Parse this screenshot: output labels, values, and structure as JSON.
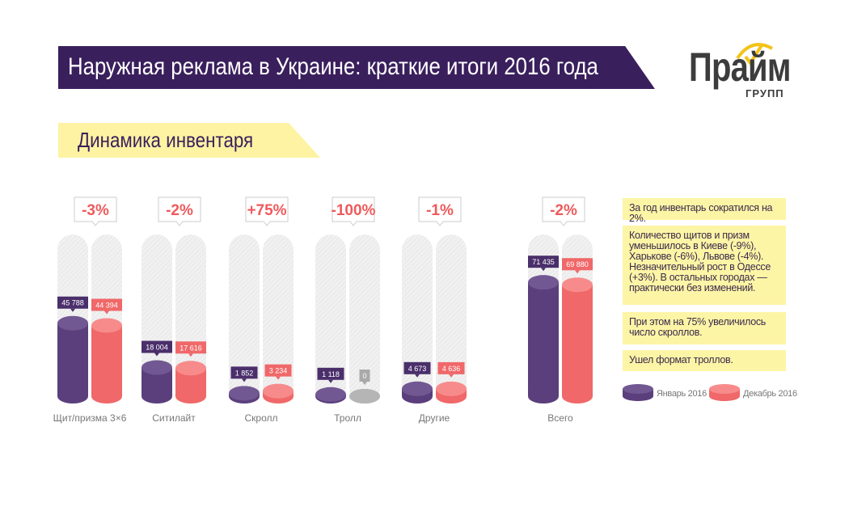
{
  "header": {
    "title": "Наружная реклама в Украине: краткие итоги 2016 года",
    "subtitle": "Динамика инвентаря"
  },
  "logo": {
    "main": "Прайм",
    "sub": "ГРУПП"
  },
  "colors": {
    "jan": "#5b3f7c",
    "jan_top": "#715892",
    "dec": "#f06869",
    "dec_top": "#f78b8b",
    "zero": "#a9a9a9",
    "banner": "#3a1f5d",
    "note_bg": "#fdf5a6"
  },
  "chart_data": {
    "type": "bar",
    "style": "3d-cylinder",
    "categories": [
      "Щит/призма 3×6",
      "Ситилайт",
      "Скролл",
      "Тролл",
      "Другие",
      "Всего"
    ],
    "series": [
      {
        "name": "Январь 2016",
        "values": [
          45788,
          18004,
          1852,
          1118,
          4673,
          71435
        ],
        "labels": [
          "45 788",
          "18 004",
          "1 852",
          "1 118",
          "4 673",
          "71 435"
        ]
      },
      {
        "name": "Декабрь 2016",
        "values": [
          44394,
          17616,
          3234,
          0,
          4636,
          69880
        ],
        "labels": [
          "44 394",
          "17 616",
          "3 234",
          "0",
          "4 636",
          "69 880"
        ]
      }
    ],
    "changes": [
      "-3%",
      "-2%",
      "+75%",
      "-100%",
      "-1%",
      "-2%"
    ],
    "legend": "bottom-right",
    "grid": false
  },
  "notes": [
    "За год инвентарь сократился на 2%.",
    "Количество щитов и призм уменьшилось в Киеве (-9%), Харькове (-6%), Львове (-4%). Незначительный рост в Одессе (+3%). В остальных городах — практически без изменений.",
    "При этом на 75% увеличилось число скроллов.",
    "Ушел формат троллов."
  ]
}
